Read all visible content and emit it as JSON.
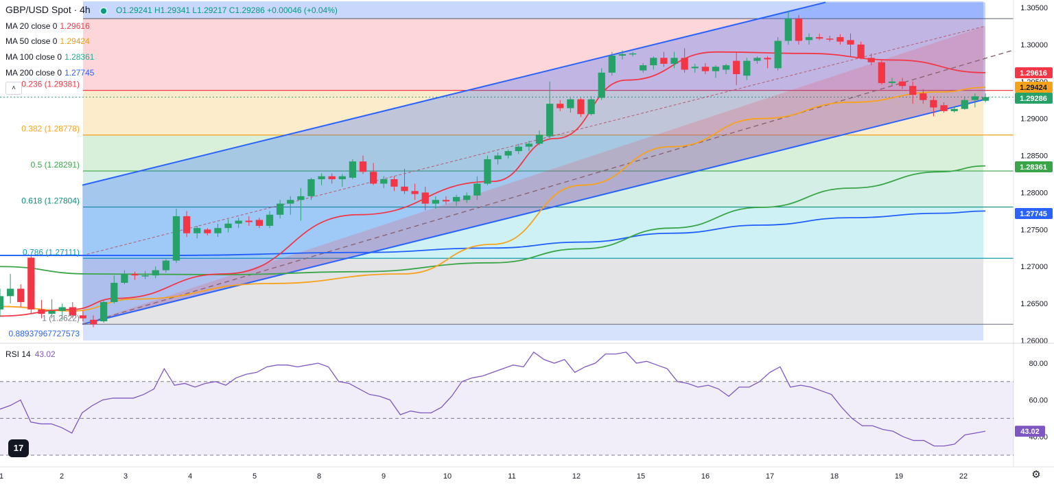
{
  "header": {
    "symbol": "GBP/USD Spot · 4h",
    "ohlc": "O1.29241 H1.29341 L1.29217 C1.29286 +0.00046 (+0.04%)"
  },
  "moving_averages": [
    {
      "label": "MA 20 close 0",
      "value": "1.29616",
      "color": "#f23645"
    },
    {
      "label": "MA 50 close 0",
      "value": "1.29424",
      "color": "#f7a21b"
    },
    {
      "label": "MA 100 close 0",
      "value": "1.28361",
      "color": "#22ab94"
    },
    {
      "label": "MA 200 close 0",
      "value": "1.27745",
      "color": "#2962ff"
    }
  ],
  "colors": {
    "up": "#26a269",
    "down": "#f23645",
    "ma20": "#f23645",
    "ma50": "#f7a21b",
    "ma100": "#3aa548",
    "ma200": "#1e5eff",
    "channel": "#2962ff",
    "rsi": "#7e57c2"
  },
  "chart_data": {
    "type": "candlestick",
    "title": "GBP/USD Spot · 4h",
    "ylim": [
      1.26,
      1.3057
    ],
    "y_ticks": [
      "1.30500",
      "1.30000",
      "1.29500",
      "1.29000",
      "1.28500",
      "1.28000",
      "1.27500",
      "1.27000",
      "1.26500",
      "1.26000"
    ],
    "x_ticks": [
      "1",
      "2",
      "3",
      "4",
      "5",
      "8",
      "9",
      "10",
      "11",
      "12",
      "15",
      "16",
      "17",
      "18",
      "19",
      "22"
    ],
    "ohlc": [
      [
        1.2642,
        1.267,
        1.2632,
        1.266
      ],
      [
        1.266,
        1.269,
        1.265,
        1.267
      ],
      [
        1.267,
        1.2676,
        1.2645,
        1.2652
      ],
      [
        1.2712,
        1.2714,
        1.2636,
        1.2642
      ],
      [
        1.2642,
        1.2655,
        1.263,
        1.2636
      ],
      [
        1.2636,
        1.2656,
        1.263,
        1.264
      ],
      [
        1.264,
        1.265,
        1.2628,
        1.2645
      ],
      [
        1.2645,
        1.2652,
        1.263,
        1.2634
      ],
      [
        1.2634,
        1.264,
        1.2626,
        1.263
      ],
      [
        1.2628,
        1.2634,
        1.2618,
        1.2622
      ],
      [
        1.2626,
        1.2655,
        1.2624,
        1.2652
      ],
      [
        1.2652,
        1.2688,
        1.265,
        1.2678
      ],
      [
        1.2678,
        1.2695,
        1.2676,
        1.269
      ],
      [
        1.269,
        1.2693,
        1.2682,
        1.2688
      ],
      [
        1.2688,
        1.2694,
        1.2683,
        1.2688
      ],
      [
        1.2688,
        1.27,
        1.2684,
        1.2695
      ],
      [
        1.2695,
        1.271,
        1.2692,
        1.2708
      ],
      [
        1.2708,
        1.2778,
        1.2705,
        1.2768
      ],
      [
        1.2768,
        1.2775,
        1.274,
        1.2745
      ],
      [
        1.2745,
        1.2755,
        1.2738,
        1.2752
      ],
      [
        1.275,
        1.2752,
        1.2742,
        1.2745
      ],
      [
        1.2745,
        1.2758,
        1.274,
        1.2752
      ],
      [
        1.2752,
        1.2764,
        1.2746,
        1.2758
      ],
      [
        1.2758,
        1.2766,
        1.2752,
        1.2762
      ],
      [
        1.2762,
        1.2768,
        1.2755,
        1.276
      ],
      [
        1.2763,
        1.2766,
        1.2752,
        1.2755
      ],
      [
        1.2755,
        1.2775,
        1.2752,
        1.277
      ],
      [
        1.277,
        1.279,
        1.2765,
        1.2785
      ],
      [
        1.2785,
        1.2795,
        1.277,
        1.279
      ],
      [
        1.279,
        1.2806,
        1.2762,
        1.2795
      ],
      [
        1.2795,
        1.282,
        1.279,
        1.2818
      ],
      [
        1.2818,
        1.2826,
        1.281,
        1.2822
      ],
      [
        1.2822,
        1.2826,
        1.2812,
        1.2818
      ],
      [
        1.2818,
        1.2825,
        1.2808,
        1.2822
      ],
      [
        1.282,
        1.2845,
        1.2818,
        1.2842
      ],
      [
        1.2842,
        1.285,
        1.2825,
        1.2828
      ],
      [
        1.2828,
        1.284,
        1.281,
        1.2812
      ],
      [
        1.2812,
        1.2822,
        1.2806,
        1.2818
      ],
      [
        1.2818,
        1.2822,
        1.2802,
        1.2808
      ],
      [
        1.2808,
        1.2832,
        1.2798,
        1.2802
      ],
      [
        1.2802,
        1.2812,
        1.279,
        1.2798
      ],
      [
        1.28,
        1.2808,
        1.2776,
        1.2785
      ],
      [
        1.2785,
        1.2795,
        1.2778,
        1.279
      ],
      [
        1.279,
        1.2795,
        1.2784,
        1.2788
      ],
      [
        1.2788,
        1.2797,
        1.2782,
        1.2794
      ],
      [
        1.279,
        1.28,
        1.2786,
        1.2796
      ],
      [
        1.2796,
        1.2822,
        1.279,
        1.2812
      ],
      [
        1.2812,
        1.285,
        1.281,
        1.2845
      ],
      [
        1.2845,
        1.2854,
        1.2838,
        1.285
      ],
      [
        1.285,
        1.2858,
        1.2846,
        1.2856
      ],
      [
        1.2856,
        1.2866,
        1.2852,
        1.2862
      ],
      [
        1.2862,
        1.287,
        1.2856,
        1.2866
      ],
      [
        1.2866,
        1.2884,
        1.2864,
        1.2878
      ],
      [
        1.2876,
        1.295,
        1.2872,
        1.292
      ],
      [
        1.292,
        1.2925,
        1.291,
        1.2914
      ],
      [
        1.2914,
        1.2928,
        1.2908,
        1.2926
      ],
      [
        1.2926,
        1.2928,
        1.2902,
        1.2906
      ],
      [
        1.2906,
        1.293,
        1.2904,
        1.2926
      ],
      [
        1.2928,
        1.2968,
        1.2925,
        1.2962
      ],
      [
        1.2962,
        1.299,
        1.2958,
        1.2985
      ],
      [
        1.2985,
        1.2992,
        1.298,
        1.2987
      ],
      [
        1.2987,
        1.299,
        1.2984,
        1.2988
      ],
      [
        1.2965,
        1.2975,
        1.2962,
        1.2972
      ],
      [
        1.2972,
        1.2984,
        1.2966,
        1.2982
      ],
      [
        1.2982,
        1.299,
        1.297,
        1.2974
      ],
      [
        1.2974,
        1.299,
        1.2968,
        1.2982
      ],
      [
        1.2982,
        1.2995,
        1.2962,
        1.2966
      ],
      [
        1.2968,
        1.2974,
        1.2962,
        1.297
      ],
      [
        1.297,
        1.2975,
        1.296,
        1.2964
      ],
      [
        1.2964,
        1.2972,
        1.2955,
        1.297
      ],
      [
        1.2966,
        1.2974,
        1.296,
        1.2972
      ],
      [
        1.2978,
        1.299,
        1.2945,
        1.296
      ],
      [
        1.2958,
        1.2982,
        1.2952,
        1.2978
      ],
      [
        1.2978,
        1.2984,
        1.2974,
        1.2982
      ],
      [
        1.2982,
        1.2984,
        1.2968,
        1.298
      ],
      [
        1.2968,
        1.301,
        1.2965,
        1.3005
      ],
      [
        1.3005,
        1.3045,
        1.3,
        1.3035
      ],
      [
        1.3035,
        1.304,
        1.3,
        1.3005
      ],
      [
        1.3006,
        1.3015,
        1.3,
        1.301
      ],
      [
        1.301,
        1.3015,
        1.3006,
        1.3008
      ],
      [
        1.3008,
        1.3012,
        1.3004,
        1.3007
      ],
      [
        1.301,
        1.3014,
        1.3,
        1.3004
      ],
      [
        1.3006,
        1.3015,
        1.2984,
        1.3
      ],
      [
        1.3,
        1.3004,
        1.298,
        1.2982
      ],
      [
        1.2982,
        1.2988,
        1.2972,
        1.2976
      ],
      [
        1.2976,
        1.298,
        1.2946,
        1.2948
      ],
      [
        1.2948,
        1.2955,
        1.2944,
        1.295
      ],
      [
        1.295,
        1.2955,
        1.294,
        1.2944
      ],
      [
        1.2944,
        1.295,
        1.292,
        1.2932
      ],
      [
        1.2934,
        1.294,
        1.292,
        1.2925
      ],
      [
        1.2925,
        1.293,
        1.2903,
        1.2915
      ],
      [
        1.2918,
        1.2922,
        1.2908,
        1.291
      ],
      [
        1.291,
        1.2916,
        1.2908,
        1.2913
      ],
      [
        1.2913,
        1.293,
        1.2912,
        1.2925
      ],
      [
        1.2925,
        1.2934,
        1.2915,
        1.293
      ],
      [
        1.2924,
        1.2934,
        1.2922,
        1.2929
      ]
    ],
    "moving_averages": {
      "ma20": [
        [
          0,
          1.2633
        ],
        [
          8,
          1.2642
        ],
        [
          13,
          1.2657
        ],
        [
          25,
          1.269
        ],
        [
          40,
          1.277
        ],
        [
          55,
          1.2815
        ],
        [
          62,
          1.2873
        ],
        [
          70,
          1.2952
        ],
        [
          80,
          1.299
        ],
        [
          90,
          1.2988
        ],
        [
          100,
          1.2979
        ],
        [
          110,
          1.2962
        ]
      ],
      "ma50": [
        [
          0,
          1.2646
        ],
        [
          8,
          1.264
        ],
        [
          15,
          1.2656
        ],
        [
          30,
          1.2677
        ],
        [
          45,
          1.269
        ],
        [
          55,
          1.273
        ],
        [
          65,
          1.281
        ],
        [
          75,
          1.2862
        ],
        [
          85,
          1.29
        ],
        [
          95,
          1.2922
        ],
        [
          105,
          1.2936
        ],
        [
          110,
          1.2942
        ]
      ],
      "ma100": [
        [
          0,
          1.27
        ],
        [
          10,
          1.269
        ],
        [
          25,
          1.2689
        ],
        [
          40,
          1.2693
        ],
        [
          55,
          1.2705
        ],
        [
          65,
          1.2724
        ],
        [
          75,
          1.2752
        ],
        [
          85,
          1.278
        ],
        [
          95,
          1.2806
        ],
        [
          105,
          1.2828
        ],
        [
          110,
          1.2836
        ]
      ],
      "ma200": [
        [
          0,
          1.2715
        ],
        [
          20,
          1.2715
        ],
        [
          40,
          1.2719
        ],
        [
          55,
          1.2725
        ],
        [
          65,
          1.2733
        ],
        [
          75,
          1.2745
        ],
        [
          85,
          1.2756
        ],
        [
          95,
          1.2766
        ],
        [
          105,
          1.2772
        ],
        [
          110,
          1.2775
        ]
      ]
    },
    "fibonacci": [
      {
        "label": "0.236 (1.29381)",
        "value": 1.29381,
        "color": "#f23645",
        "fill_to": 1.3035,
        "fill": "#fcd6d8"
      },
      {
        "label": "0.382 (1.28778)",
        "value": 1.28778,
        "color": "#f7a21b",
        "fill_to": 1.29381,
        "fill": "#fdeccb"
      },
      {
        "label": "0.5 (1.28291)",
        "value": 1.28291,
        "color": "#3aa548",
        "fill_to": 1.28778,
        "fill": "#d8f0d9"
      },
      {
        "label": "0.618 (1.27804)",
        "value": 1.27804,
        "color": "#0c8c7a",
        "fill_to": 1.28291,
        "fill": "#d4efe6"
      },
      {
        "label": "0.786 (1.27111)",
        "value": 1.27111,
        "color": "#0aa0b0",
        "fill_to": 1.27804,
        "fill": "#cdf1f4"
      },
      {
        "label": "1 (1.2622)",
        "value": 1.2622,
        "color": "#787b86",
        "fill_to": 1.27111,
        "fill": "#e4e4e6"
      },
      {
        "label": "0.889379677275​73",
        "value": 1.26,
        "color": "#2962ff",
        "fill_to": 1.2622,
        "fill": "#d6e2fb"
      }
    ],
    "price_labels": [
      {
        "text": "1.29616",
        "value": 1.29616,
        "color": "#f23645"
      },
      {
        "text": "1.29424",
        "value": 1.29424,
        "color": "#f7a21b"
      },
      {
        "text": "1.29286",
        "value": 1.29286,
        "color": "#26a269"
      },
      {
        "text": "1.28361",
        "value": 1.28361,
        "color": "#3aa548"
      },
      {
        "text": "1.27745",
        "value": 1.27745,
        "color": "#2962ff"
      }
    ],
    "rsi": {
      "label": "RSI 14",
      "value": "43.02",
      "ylim": [
        30,
        90
      ],
      "ticks": [
        "80.00",
        "60.00",
        "40.00"
      ],
      "levels": [
        70,
        50,
        30
      ],
      "series": [
        55,
        57,
        60,
        48,
        47,
        47,
        45,
        42,
        53,
        57,
        60,
        61,
        61,
        61,
        63,
        66,
        77,
        68,
        69,
        67,
        69,
        70,
        68,
        72,
        74,
        75,
        78,
        79,
        79,
        78,
        79,
        80,
        78,
        70,
        69,
        66,
        63,
        62,
        60,
        52,
        54,
        53,
        53,
        56,
        62,
        70,
        72,
        73,
        75,
        77,
        79,
        78,
        86,
        82,
        80,
        82,
        75,
        78,
        80,
        85,
        85,
        86,
        80,
        81,
        79,
        77,
        70,
        69,
        67,
        68,
        66,
        62,
        67,
        67,
        70,
        75,
        78,
        67,
        68,
        67,
        65,
        63,
        56,
        50,
        46,
        46,
        44,
        43,
        40,
        38,
        38,
        35,
        35,
        36,
        41,
        42,
        43
      ]
    }
  }
}
